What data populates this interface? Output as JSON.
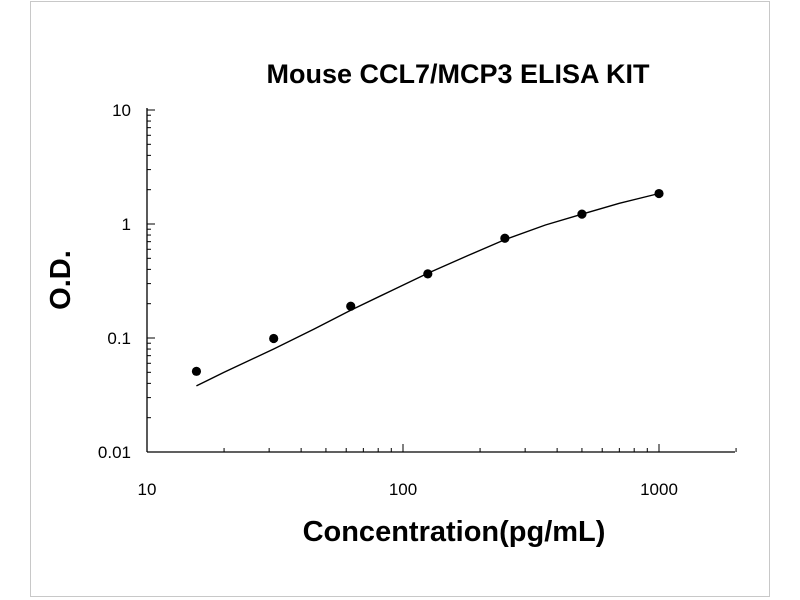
{
  "chart_data": {
    "type": "scatter",
    "title": "Mouse CCL7/MCP3 ELISA KIT",
    "xlabel": "Concentration(pg/mL)",
    "ylabel": "O.D.",
    "x_scale": "log",
    "y_scale": "log",
    "xlim": [
      10,
      2000
    ],
    "ylim": [
      0.01,
      10
    ],
    "x_ticks": [
      {
        "value": 10,
        "label": "10"
      },
      {
        "value": 100,
        "label": "100"
      },
      {
        "value": 1000,
        "label": "1000"
      }
    ],
    "y_ticks": [
      {
        "value": 0.01,
        "label": "0.01"
      },
      {
        "value": 0.1,
        "label": "0.1"
      },
      {
        "value": 1,
        "label": "1"
      },
      {
        "value": 10,
        "label": "10"
      }
    ],
    "grid": false,
    "legend": "none",
    "series": [
      {
        "type": "scatter",
        "x": [
          15.6,
          31.25,
          62.5,
          125,
          250,
          500,
          1000
        ],
        "y": [
          0.051,
          0.099,
          0.19,
          0.365,
          0.75,
          1.22,
          1.85
        ]
      },
      {
        "type": "line",
        "x": [
          15.6,
          20,
          31.25,
          45,
          62.5,
          90,
          125,
          180,
          250,
          360,
          500,
          700,
          1000
        ],
        "y": [
          0.038,
          0.05,
          0.08,
          0.12,
          0.175,
          0.26,
          0.37,
          0.53,
          0.73,
          0.98,
          1.22,
          1.52,
          1.85
        ]
      }
    ],
    "colors": {
      "marker": "#000000",
      "line": "#000000",
      "axis": "#000000",
      "frame_border": "#c8c8c8"
    }
  }
}
